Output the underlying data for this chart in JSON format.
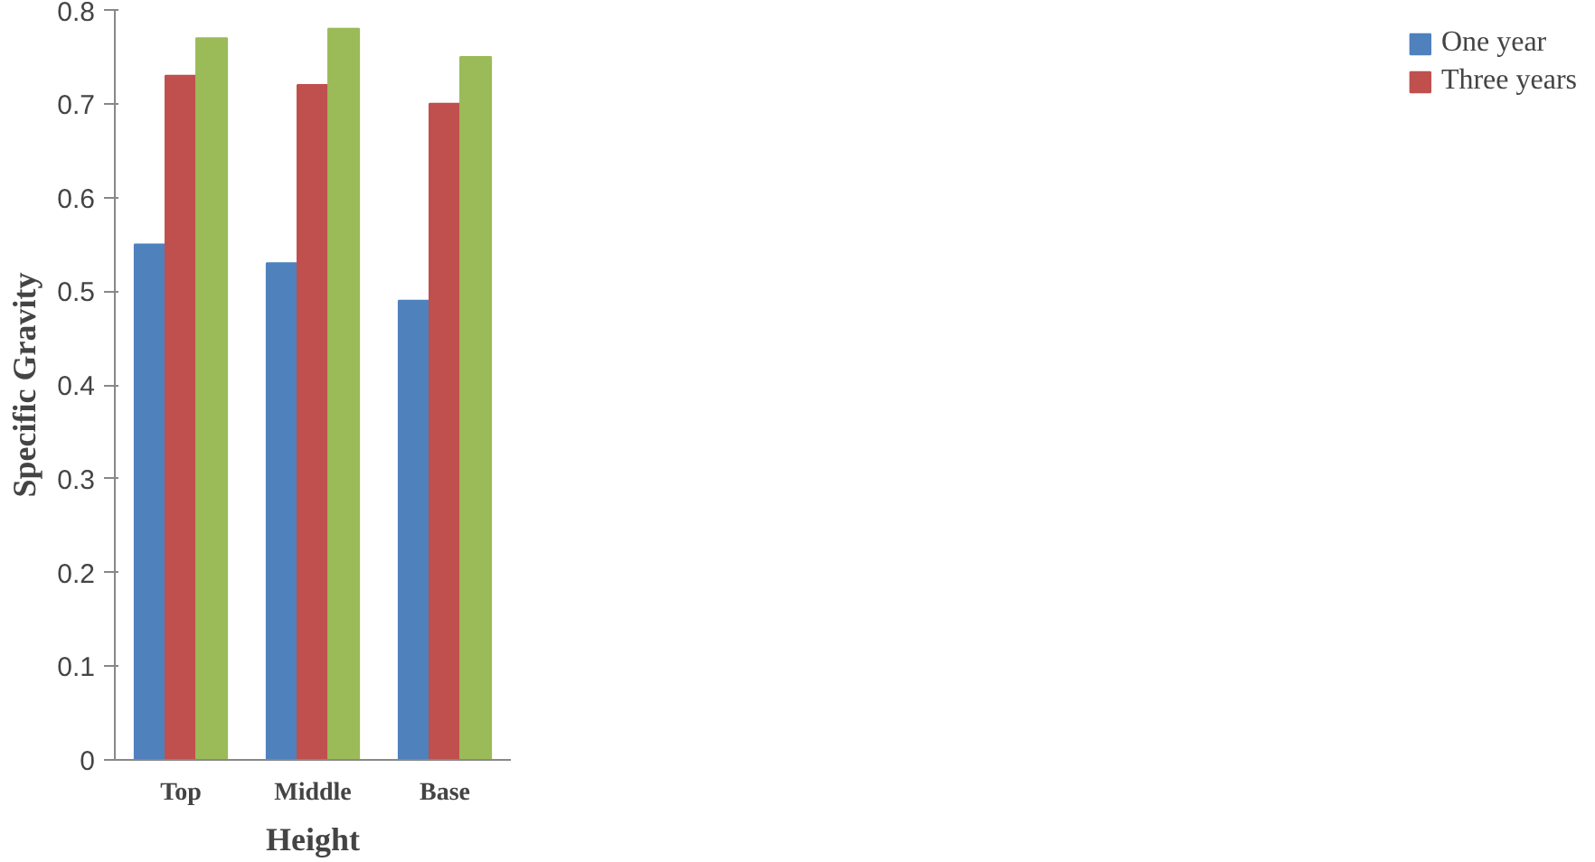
{
  "chart_data": {
    "type": "bar",
    "xlabel": "Height",
    "ylabel": "Specific Gravity",
    "categories": [
      "Top",
      "Middle",
      "Base"
    ],
    "series": [
      {
        "name": "One year",
        "color": "#4f81bd",
        "values": [
          0.55,
          0.53,
          0.49
        ]
      },
      {
        "name": "Three years",
        "color": "#c0504d",
        "values": [
          0.73,
          0.72,
          0.7
        ]
      },
      {
        "color": "#9bbb59",
        "values": [
          0.77,
          0.78,
          0.75
        ]
      }
    ],
    "ylim": [
      0,
      0.8
    ],
    "yticks": [
      0,
      0.1,
      0.2,
      0.3,
      0.4,
      0.5,
      0.6,
      0.7,
      0.8
    ],
    "grid": false,
    "legend": "right"
  }
}
